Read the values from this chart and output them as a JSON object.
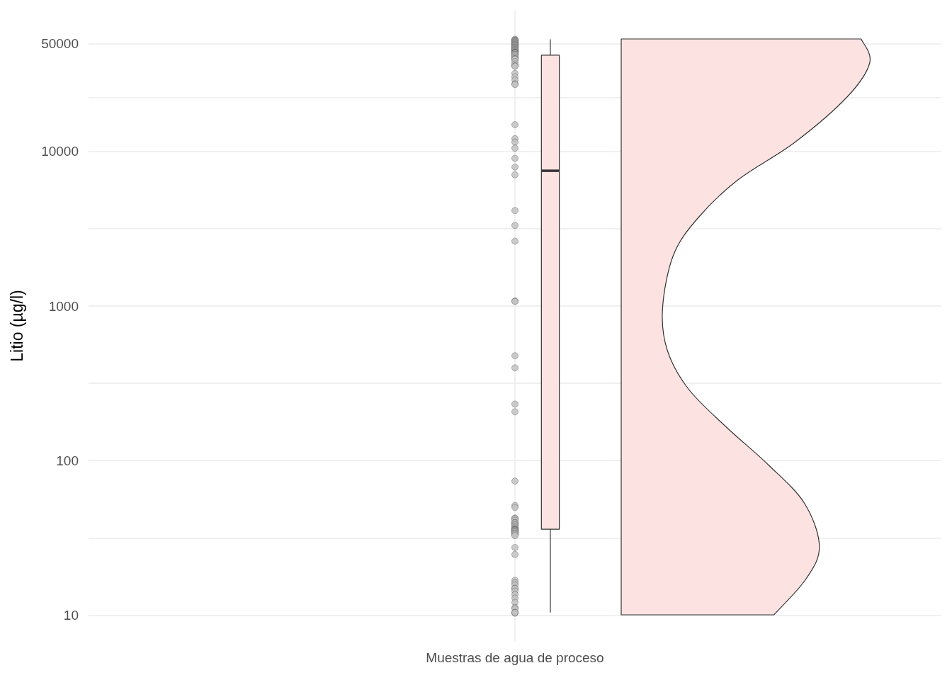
{
  "chart_data": {
    "type": "box",
    "categories": [
      "Muestras de agua de proceso"
    ],
    "ylabel": "Litio (µg/l)",
    "log": "y",
    "ylim": [
      6.8,
      81500
    ],
    "yticks": [
      10,
      {
        "value": 31.6,
        "label": null
      },
      100,
      {
        "value": 316,
        "label": null
      },
      1000,
      {
        "value": 3162,
        "label": null
      },
      10000,
      {
        "value": 22361,
        "label": null
      },
      50000
    ],
    "grid": true,
    "series": [
      {
        "type": "scatter",
        "color": "#c2c2c2",
        "x": [
          "Muestras de agua de proceso",
          "Muestras de agua de proceso",
          "Muestras de agua de proceso",
          "Muestras de agua de proceso",
          "Muestras de agua de proceso",
          "Muestras de agua de proceso",
          "Muestras de agua de proceso",
          "Muestras de agua de proceso",
          "Muestras de agua de proceso",
          "Muestras de agua de proceso",
          "Muestras de agua de proceso",
          "Muestras de agua de proceso",
          "Muestras de agua de proceso",
          "Muestras de agua de proceso",
          "Muestras de agua de proceso",
          "Muestras de agua de proceso",
          "Muestras de agua de proceso",
          "Muestras de agua de proceso",
          "Muestras de agua de proceso",
          "Muestras de agua de proceso",
          "Muestras de agua de proceso",
          "Muestras de agua de proceso",
          "Muestras de agua de proceso",
          "Muestras de agua de proceso",
          "Muestras de agua de proceso",
          "Muestras de agua de proceso",
          "Muestras de agua de proceso",
          "Muestras de agua de proceso",
          "Muestras de agua de proceso",
          "Muestras de agua de proceso",
          "Muestras de agua de proceso",
          "Muestras de agua de proceso",
          "Muestras de agua de proceso",
          "Muestras de agua de proceso",
          "Muestras de agua de proceso",
          "Muestras de agua de proceso",
          "Muestras de agua de proceso",
          "Muestras de agua de proceso",
          "Muestras de agua de proceso",
          "Muestras de agua de proceso",
          "Muestras de agua de proceso",
          "Muestras de agua de proceso",
          "Muestras de agua de proceso",
          "Muestras de agua de proceso",
          "Muestras de agua de proceso",
          "Muestras de agua de proceso",
          "Muestras de agua de proceso",
          "Muestras de agua de proceso",
          "Muestras de agua de proceso",
          "Muestras de agua de proceso",
          "Muestras de agua de proceso",
          "Muestras de agua de proceso",
          "Muestras de agua de proceso",
          "Muestras de agua de proceso",
          "Muestras de agua de proceso",
          "Muestras de agua de proceso",
          "Muestras de agua de proceso",
          "Muestras de agua de proceso",
          "Muestras de agua de proceso",
          "Muestras de agua de proceso",
          "Muestras de agua de proceso",
          "Muestras de agua de proceso",
          "Muestras de agua de proceso",
          "Muestras de agua de proceso",
          "Muestras de agua de proceso",
          "Muestras de agua de proceso",
          "Muestras de agua de proceso",
          "Muestras de agua de proceso",
          "Muestras de agua de proceso",
          "Muestras de agua de proceso",
          "Muestras de agua de proceso",
          "Muestras de agua de proceso",
          "Muestras de agua de proceso",
          "Muestras de agua de proceso",
          "Muestras de agua de proceso",
          "Muestras de agua de proceso",
          "Muestras de agua de proceso",
          "Muestras de agua de proceso",
          "Muestras de agua de proceso",
          "Muestras de agua de proceso",
          "Muestras de agua de proceso",
          "Muestras de agua de proceso",
          "Muestras de agua de proceso",
          "Muestras de agua de proceso",
          "Muestras de agua de proceso",
          "Muestras de agua de proceso",
          "Muestras de agua de proceso",
          "Muestras de agua de proceso",
          "Muestras de agua de proceso",
          "Muestras de agua de proceso",
          "Muestras de agua de proceso",
          "Muestras de agua de proceso",
          "Muestras de agua de proceso",
          "Muestras de agua de proceso",
          "Muestras de agua de proceso",
          "Muestras de agua de proceso",
          "Muestras de agua de proceso",
          "Muestras de agua de proceso"
        ],
        "values": [
          53200,
          52700,
          52300,
          51900,
          51400,
          50900,
          50500,
          50100,
          49600,
          49100,
          48800,
          48400,
          47900,
          47400,
          47100,
          46800,
          46300,
          45800,
          45500,
          45100,
          44700,
          44200,
          43900,
          43600,
          43600,
          43200,
          42700,
          42400,
          41700,
          40900,
          40200,
          39800,
          39500,
          38100,
          36800,
          35800,
          35600,
          32000,
          30400,
          29000,
          27400,
          27100,
          14900,
          12100,
          11500,
          10500,
          9030,
          7930,
          7070,
          4150,
          3320,
          2630,
          1080,
          1070,
          477,
          398,
          232,
          207,
          73.7,
          51.2,
          49.8,
          42.5,
          42.2,
          41.1,
          39.7,
          39.7,
          38.9,
          38.3,
          37.6,
          37.0,
          36.3,
          36.0,
          35.7,
          35.7,
          35.4,
          35.0,
          35.0,
          34.5,
          33.9,
          33.9,
          33.3,
          32.7,
          27.4,
          24.7,
          16.8,
          16.2,
          15.7,
          14.9,
          14.9,
          14.3,
          13.6,
          12.9,
          12.1,
          11.2,
          11.0,
          10.4,
          10.3,
          10.4
        ]
      },
      {
        "color": "#fde2e2",
        "boxes": [
          {
            "low": 10.4,
            "q1": 36,
            "median": 7500,
            "q3": 42000,
            "high": 53200
          }
        ]
      }
    ]
  }
}
